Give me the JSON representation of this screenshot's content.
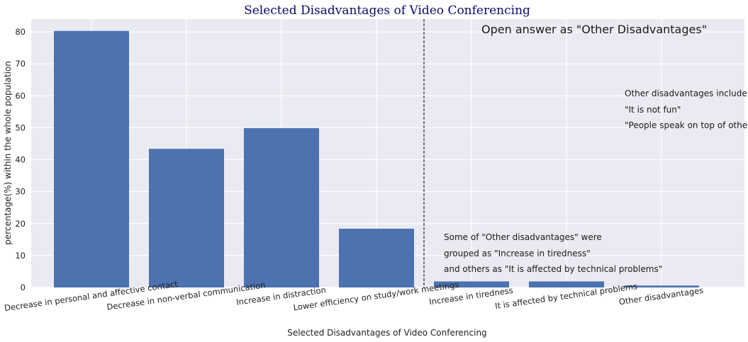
{
  "chart_data": {
    "type": "bar",
    "title": "Selected Disadvantages of Video Conferencing",
    "xlabel": "Selected Disadvantages of Video Conferencing",
    "ylabel": "percentage(%) within the whole population",
    "ylim": [
      0,
      84
    ],
    "yticks": [
      "0",
      "10",
      "20",
      "30",
      "40",
      "50",
      "60",
      "70",
      "80"
    ],
    "grid": true,
    "bar_color": "#4c72b0",
    "background_color": "#eaeaf2",
    "categories": [
      "Decrease in personal and affective contact",
      "Decrease in non-verbal communication",
      "Increase in distraction",
      "Lower efficiency on study/work meetings",
      "Increase in tiredness",
      "It is affected by technical problems",
      "Other disadvantages"
    ],
    "values": [
      80.3,
      43.4,
      49.9,
      18.4,
      1.9,
      1.9,
      0.6
    ],
    "divider": {
      "after_category_index": 3,
      "style": "dashed"
    },
    "annotations": {
      "open_answer_title": "Open answer as \"Other Disadvantages\"",
      "other_list": [
        "Other disadvantages include:",
        "\"It is not fun\"",
        "\"People speak on top of others\""
      ],
      "grouped_note": [
        "Some of \"Other disadvantages\" were",
        "grouped as \"Increase in tiredness\"",
        "and others as \"It is affected by technical problems\""
      ]
    }
  }
}
